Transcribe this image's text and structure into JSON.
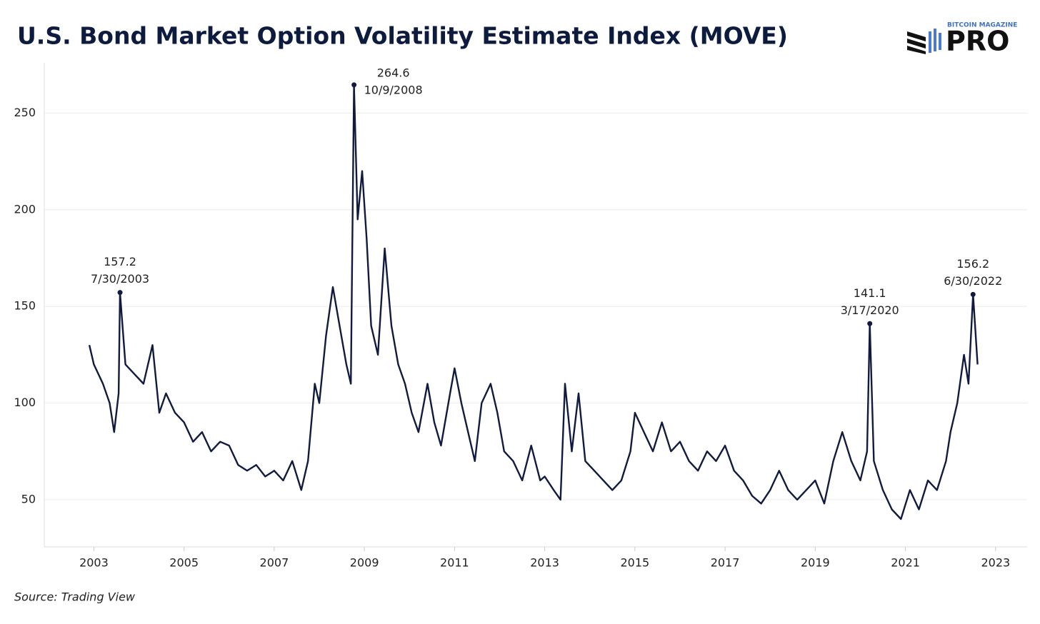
{
  "chart_data": {
    "type": "line",
    "title": "U.S. Bond Market Option Volatility Estimate Index (MOVE)",
    "source": "Source: Trading View",
    "logo": {
      "top": "BITCOIN MAGAZINE",
      "main": "PRO"
    },
    "xlim": [
      2001.9,
      2023.7
    ],
    "ylim": [
      25.6,
      276
    ],
    "xticks": [
      2003,
      2005,
      2007,
      2009,
      2011,
      2013,
      2015,
      2017,
      2019,
      2021,
      2023
    ],
    "yticks": [
      50,
      100,
      150,
      200,
      250
    ],
    "grid": true,
    "series": [
      {
        "color": "#111a3f",
        "x": [
          2002.9,
          2003.0,
          2003.2,
          2003.35,
          2003.45,
          2003.55,
          2003.58,
          2003.7,
          2003.9,
          2004.1,
          2004.3,
          2004.45,
          2004.6,
          2004.8,
          2005.0,
          2005.2,
          2005.4,
          2005.6,
          2005.8,
          2006.0,
          2006.2,
          2006.4,
          2006.6,
          2006.8,
          2007.0,
          2007.2,
          2007.4,
          2007.6,
          2007.75,
          2007.9,
          2008.0,
          2008.15,
          2008.3,
          2008.45,
          2008.6,
          2008.7,
          2008.77,
          2008.85,
          2008.95,
          2009.05,
          2009.15,
          2009.3,
          2009.45,
          2009.6,
          2009.75,
          2009.9,
          2010.05,
          2010.2,
          2010.4,
          2010.55,
          2010.7,
          2010.9,
          2011.0,
          2011.15,
          2011.3,
          2011.45,
          2011.6,
          2011.8,
          2011.95,
          2012.1,
          2012.3,
          2012.5,
          2012.7,
          2012.9,
          2013.0,
          2013.2,
          2013.35,
          2013.45,
          2013.6,
          2013.75,
          2013.9,
          2014.1,
          2014.3,
          2014.5,
          2014.7,
          2014.9,
          2015.0,
          2015.2,
          2015.4,
          2015.6,
          2015.8,
          2016.0,
          2016.2,
          2016.4,
          2016.6,
          2016.8,
          2017.0,
          2017.2,
          2017.4,
          2017.6,
          2017.8,
          2018.0,
          2018.2,
          2018.4,
          2018.6,
          2018.8,
          2019.0,
          2019.2,
          2019.4,
          2019.6,
          2019.8,
          2020.0,
          2020.15,
          2020.21,
          2020.3,
          2020.5,
          2020.7,
          2020.9,
          2021.1,
          2021.3,
          2021.5,
          2021.7,
          2021.9,
          2022.0,
          2022.15,
          2022.3,
          2022.4,
          2022.5,
          2022.6
        ],
        "values": [
          130,
          120,
          110,
          100,
          85,
          105,
          157.2,
          120,
          115,
          110,
          130,
          95,
          105,
          95,
          90,
          80,
          85,
          75,
          80,
          78,
          68,
          65,
          68,
          62,
          65,
          60,
          70,
          55,
          70,
          110,
          100,
          135,
          160,
          140,
          120,
          110,
          264.6,
          195,
          220,
          185,
          140,
          125,
          180,
          140,
          120,
          110,
          95,
          85,
          110,
          90,
          78,
          105,
          118,
          100,
          85,
          70,
          100,
          110,
          95,
          75,
          70,
          60,
          78,
          60,
          62,
          55,
          50,
          110,
          75,
          105,
          70,
          65,
          60,
          55,
          60,
          75,
          95,
          85,
          75,
          90,
          75,
          80,
          70,
          65,
          75,
          70,
          78,
          65,
          60,
          52,
          48,
          55,
          65,
          55,
          50,
          55,
          60,
          48,
          70,
          85,
          70,
          60,
          75,
          141.1,
          70,
          55,
          45,
          40,
          55,
          45,
          60,
          55,
          70,
          85,
          100,
          125,
          110,
          156.2,
          120
        ]
      }
    ],
    "annotations": [
      {
        "x": 2003.58,
        "value": 157.2,
        "date": "7/30/2003"
      },
      {
        "x": 2008.77,
        "value": 264.6,
        "date": "10/9/2008"
      },
      {
        "x": 2020.21,
        "value": 141.1,
        "date": "3/17/2020"
      },
      {
        "x": 2022.5,
        "value": 156.2,
        "date": "6/30/2022"
      }
    ]
  }
}
